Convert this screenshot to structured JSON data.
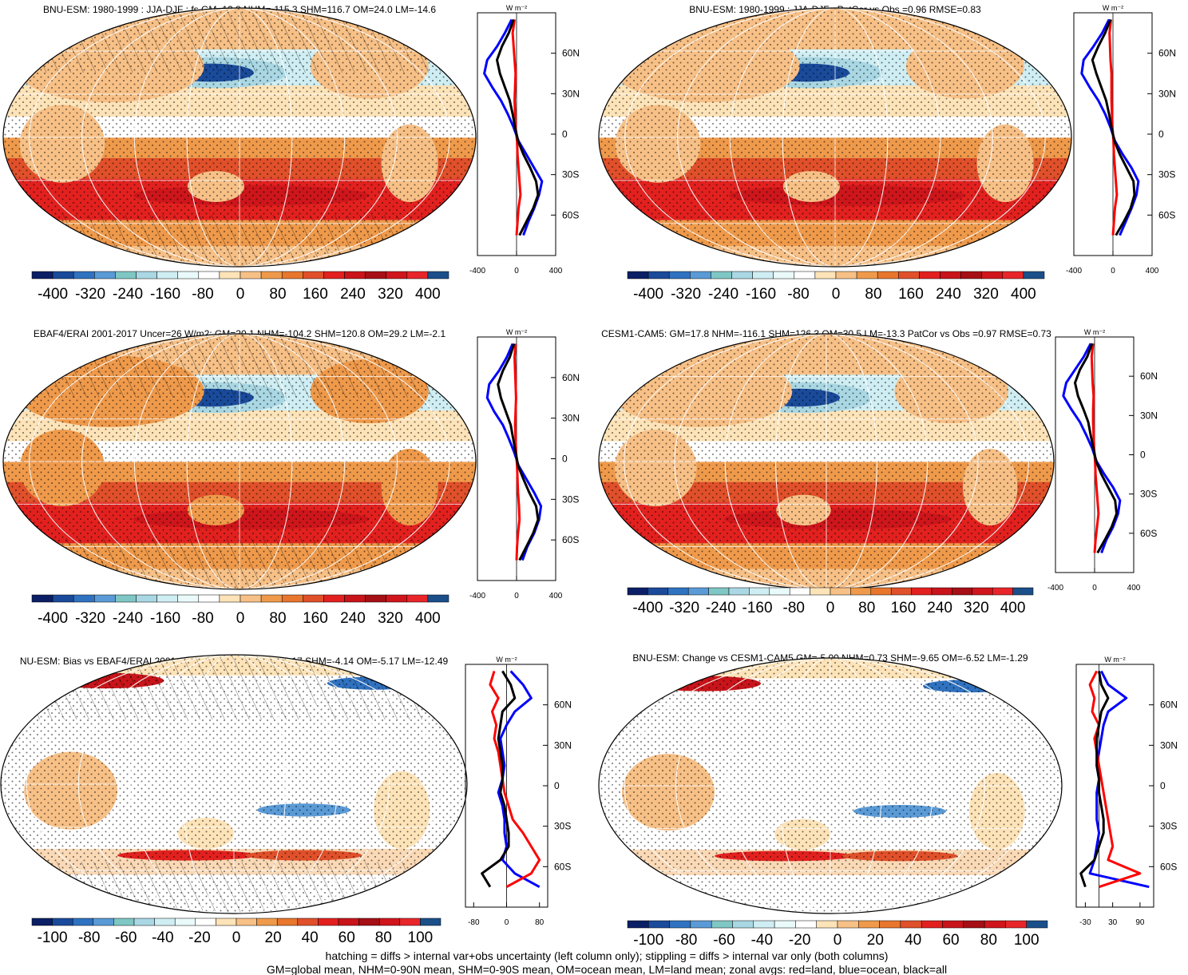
{
  "panels": [
    {
      "id": "p1",
      "title": "BNU-ESM: 1980-1999 : JJA-DJF : fs GM=12.8 NHM=-115.3 SHM=116.7 OM=24.0 LM=-14.6",
      "colorbar_labels": [
        "-400",
        "-320",
        "-240",
        "-160",
        "-80",
        "0",
        "80",
        "160",
        "240",
        "320",
        "400"
      ],
      "profile_units": "W m⁻²",
      "profile_xticks": [
        "-400",
        "0",
        "400"
      ],
      "lat_labels": [
        "60N",
        "30N",
        "0",
        "30S",
        "60S"
      ]
    },
    {
      "id": "p2",
      "title": "BNU-ESM: 1980-1999 : JJA-DJF : PatCor vs Obs =0.96 RMSE=0.83",
      "colorbar_labels": [
        "-400",
        "-320",
        "-240",
        "-160",
        "-80",
        "0",
        "80",
        "160",
        "240",
        "320",
        "400"
      ],
      "profile_units": "W m⁻²",
      "profile_xticks": [
        "-400",
        "0",
        "400"
      ],
      "lat_labels": [
        "60N",
        "30N",
        "0",
        "30S",
        "60S"
      ]
    },
    {
      "id": "p3",
      "title": "EBAF4/ERAI 2001-2017 Uncer=26 W/m2: GM=20.1 NHM=-104.2 SHM=120.8 OM=29.2 LM=-2.1",
      "colorbar_labels": [
        "-400",
        "-320",
        "-240",
        "-160",
        "-80",
        "0",
        "80",
        "160",
        "240",
        "320",
        "400"
      ],
      "profile_units": "W m⁻²",
      "profile_xticks": [
        "-400",
        "0",
        "400"
      ],
      "lat_labels": [
        "60N",
        "30N",
        "0",
        "30S",
        "60S"
      ]
    },
    {
      "id": "p4",
      "title": "CESM1-CAM5: GM=17.8 NHM=-116.1 SHM=126.3 OM=30.5 LM=-13.3 PatCor vs Obs =0.97 RMSE=0.73",
      "colorbar_labels": [
        "-400",
        "-320",
        "-240",
        "-160",
        "-80",
        "0",
        "80",
        "160",
        "240",
        "320",
        "400"
      ],
      "profile_units": "W m⁻²",
      "profile_xticks": [
        "-400",
        "0",
        "400"
      ],
      "lat_labels": [
        "60N",
        "30N",
        "0",
        "30S",
        "60S"
      ]
    },
    {
      "id": "p5",
      "title": "NU-ESM: Bias vs EBAF4/ERAI 2001-2017 GM=-7.29 NHM=-11.17 SHM=-4.14 OM=-5.17 LM=-12.49",
      "colorbar_labels": [
        "-100",
        "-80",
        "-60",
        "-40",
        "-20",
        "0",
        "20",
        "40",
        "60",
        "80",
        "100"
      ],
      "profile_units": "W m⁻²",
      "profile_xticks": [
        "-80",
        "0",
        "80"
      ],
      "lat_labels": [
        "60N",
        "30N",
        "0",
        "30S",
        "60S"
      ]
    },
    {
      "id": "p6",
      "title": "BNU-ESM: Change vs CESM1-CAM5 GM=-5.00 NHM=0.73 SHM=-9.65 OM=-6.52 LM=-1.29",
      "colorbar_labels": [
        "-100",
        "-80",
        "-60",
        "-40",
        "-20",
        "0",
        "20",
        "40",
        "60",
        "80",
        "100"
      ],
      "profile_units": "W m⁻²",
      "profile_xticks": [
        "-30",
        "30",
        "90"
      ],
      "lat_labels": [
        "60N",
        "30N",
        "0",
        "30S",
        "60S"
      ]
    }
  ],
  "footnote": {
    "line1": "hatching = diffs > internal var+obs uncertainty (left column only); stippling = diffs > internal var only (both columns)",
    "line2": "GM=global mean, NHM=0-90N mean, SHM=0-90S mean, OM=ocean mean, LM=land mean; zonal avgs: red=land, blue=ocean, black=all"
  },
  "colors": {
    "palette": [
      "#0b1f66",
      "#1a4a9a",
      "#2f72c0",
      "#5a9ad6",
      "#7fc7c4",
      "#a9d7e3",
      "#cfeef3",
      "#eafafb",
      "#ffffff",
      "#fde3b8",
      "#f7c086",
      "#ef9a4b",
      "#e8762d",
      "#e0502a",
      "#e2211f",
      "#c8141a",
      "#a50f15",
      "#d0151c",
      "#e8262a",
      "#1b4f8a"
    ],
    "land_line": "#000000",
    "profile_land": "#ff0000",
    "profile_ocean": "#0000ff",
    "profile_all": "#000000"
  },
  "chart_data": [
    {
      "type": "heatmap",
      "panel": "p1",
      "title": "BNU-ESM: 1980-1999 : JJA-DJF : fs GM=12.8 NHM=-115.3 SHM=116.7 OM=24.0 LM=-14.6",
      "colorbar_range": [
        -400,
        400
      ],
      "profile": {
        "lat": [
          85,
          75,
          65,
          55,
          45,
          35,
          25,
          15,
          5,
          -5,
          -15,
          -25,
          -35,
          -45,
          -55,
          -65,
          -75
        ],
        "land": [
          -20,
          -40,
          -30,
          -20,
          -10,
          -15,
          -20,
          -15,
          -10,
          5,
          10,
          20,
          30,
          40,
          20,
          10,
          0
        ],
        "ocean": [
          -50,
          -120,
          -200,
          -300,
          -330,
          -250,
          -160,
          -90,
          -30,
          20,
          100,
          180,
          260,
          230,
          180,
          120,
          70
        ],
        "all": [
          -30,
          -80,
          -150,
          -200,
          -170,
          -120,
          -70,
          -40,
          -15,
          15,
          70,
          140,
          200,
          220,
          170,
          100,
          30
        ]
      }
    },
    {
      "type": "heatmap",
      "panel": "p2",
      "title": "BNU-ESM: 1980-1999 : JJA-DJF : PatCor vs Obs =0.96 RMSE=0.83",
      "colorbar_range": [
        -400,
        400
      ],
      "profile": {
        "lat": [
          85,
          75,
          65,
          55,
          45,
          35,
          25,
          15,
          5,
          -5,
          -15,
          -25,
          -35,
          -45,
          -55,
          -65,
          -75
        ],
        "land": [
          -20,
          -35,
          -30,
          -25,
          -15,
          -15,
          -15,
          -10,
          -5,
          5,
          10,
          20,
          30,
          40,
          20,
          10,
          0
        ],
        "ocean": [
          -40,
          -110,
          -200,
          -300,
          -320,
          -240,
          -150,
          -80,
          -25,
          20,
          100,
          190,
          260,
          240,
          190,
          130,
          70
        ],
        "all": [
          -25,
          -80,
          -150,
          -210,
          -170,
          -120,
          -70,
          -40,
          -15,
          15,
          70,
          140,
          210,
          220,
          180,
          110,
          30
        ]
      }
    },
    {
      "type": "heatmap",
      "panel": "p3",
      "title": "EBAF4/ERAI 2001-2017 Uncer=26 W/m2: GM=20.1 NHM=-104.2 SHM=120.8 OM=29.2 LM=-2.1",
      "colorbar_range": [
        -400,
        400
      ],
      "profile": {
        "lat": [
          85,
          75,
          65,
          55,
          45,
          35,
          25,
          15,
          5,
          -5,
          -15,
          -25,
          -35,
          -45,
          -55,
          -65,
          -75
        ],
        "land": [
          -10,
          -20,
          -15,
          -10,
          -5,
          -10,
          -15,
          -10,
          -5,
          5,
          10,
          15,
          25,
          30,
          15,
          5,
          0
        ],
        "ocean": [
          -40,
          -100,
          -180,
          -280,
          -300,
          -230,
          -140,
          -80,
          -25,
          20,
          100,
          180,
          250,
          230,
          180,
          110,
          60
        ],
        "all": [
          -25,
          -70,
          -140,
          -190,
          -160,
          -110,
          -60,
          -35,
          -10,
          15,
          70,
          130,
          200,
          220,
          170,
          100,
          30
        ]
      }
    },
    {
      "type": "heatmap",
      "panel": "p4",
      "title": "CESM1-CAM5: GM=17.8 NHM=-116.1 SHM=126.3 OM=30.5 LM=-13.3 PatCor vs Obs =0.97 RMSE=0.73",
      "colorbar_range": [
        -400,
        400
      ],
      "profile": {
        "lat": [
          85,
          75,
          65,
          55,
          45,
          35,
          25,
          15,
          5,
          -5,
          -15,
          -25,
          -35,
          -45,
          -55,
          -65,
          -75
        ],
        "land": [
          -15,
          -30,
          -25,
          -20,
          -10,
          -15,
          -15,
          -10,
          -5,
          5,
          10,
          20,
          30,
          40,
          25,
          10,
          0
        ],
        "ocean": [
          -40,
          -110,
          -200,
          -290,
          -320,
          -240,
          -150,
          -85,
          -25,
          20,
          100,
          190,
          260,
          240,
          190,
          120,
          70
        ],
        "all": [
          -25,
          -75,
          -150,
          -200,
          -170,
          -115,
          -65,
          -40,
          -12,
          15,
          70,
          140,
          210,
          225,
          175,
          105,
          30
        ]
      }
    },
    {
      "type": "heatmap",
      "panel": "p5",
      "title": "NU-ESM: Bias vs EBAF4/ERAI 2001-2017 GM=-7.29 NHM=-11.17 SHM=-4.14 OM=-5.17 LM=-12.49",
      "colorbar_range": [
        -100,
        100
      ],
      "profile": {
        "lat": [
          85,
          75,
          65,
          55,
          45,
          35,
          25,
          15,
          5,
          -5,
          -15,
          -25,
          -35,
          -45,
          -55,
          -65,
          -75
        ],
        "land": [
          -30,
          -40,
          -20,
          -35,
          -25,
          -30,
          -20,
          -15,
          -10,
          -5,
          5,
          15,
          40,
          60,
          80,
          60,
          0
        ],
        "ocean": [
          10,
          40,
          60,
          20,
          0,
          -15,
          -10,
          -5,
          -10,
          -20,
          -10,
          -5,
          -5,
          0,
          -10,
          20,
          80
        ],
        "all": [
          -10,
          10,
          20,
          -10,
          -15,
          -20,
          -15,
          -10,
          -10,
          -15,
          -5,
          0,
          5,
          5,
          -15,
          -60,
          -40
        ]
      }
    },
    {
      "type": "heatmap",
      "panel": "p6",
      "title": "BNU-ESM: Change vs CESM1-CAM5 GM=-5.00 NHM=0.73 SHM=-9.65 OM=-6.52 LM=-1.29",
      "colorbar_range": [
        -100,
        100
      ],
      "profile": {
        "lat": [
          85,
          75,
          65,
          55,
          45,
          35,
          25,
          15,
          5,
          -5,
          -15,
          -25,
          -35,
          -45,
          -55,
          -65,
          -75
        ],
        "land": [
          -5,
          -20,
          -10,
          -15,
          0,
          -10,
          -5,
          0,
          5,
          10,
          15,
          20,
          25,
          30,
          20,
          90,
          0
        ],
        "ocean": [
          5,
          20,
          60,
          20,
          10,
          5,
          0,
          -5,
          0,
          -5,
          -5,
          -5,
          0,
          -5,
          -10,
          -20,
          110
        ],
        "all": [
          0,
          5,
          20,
          5,
          0,
          -5,
          -5,
          -5,
          0,
          0,
          5,
          10,
          10,
          0,
          -10,
          -40,
          -30
        ]
      }
    }
  ]
}
